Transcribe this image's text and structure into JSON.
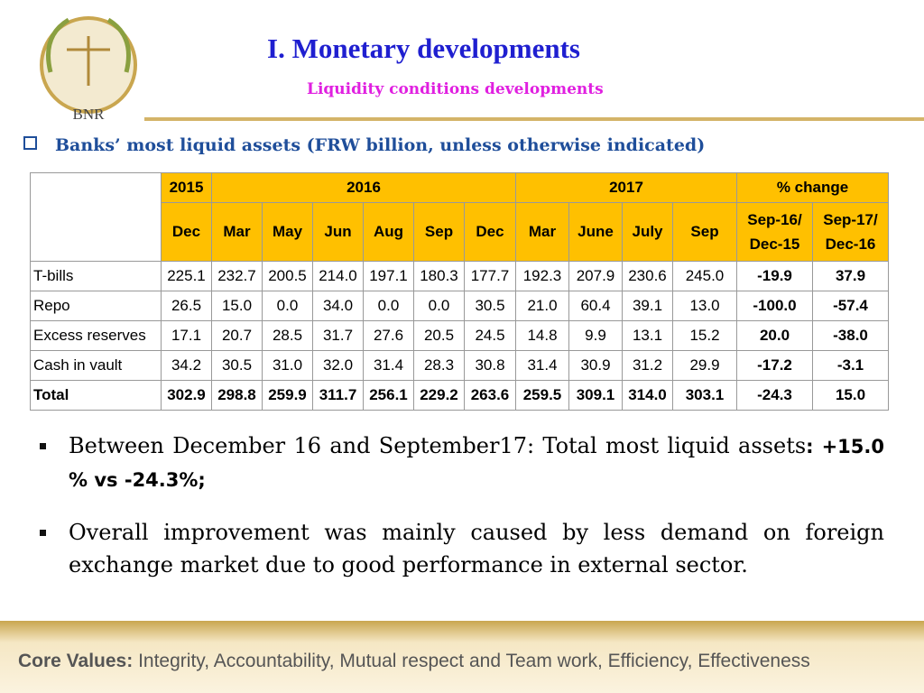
{
  "header": {
    "logo_text": "BNR",
    "title": "I. Monetary developments",
    "subtitle": "Liquidity conditions developments"
  },
  "section_heading": "Banks’ most liquid assets (FRW billion, unless otherwise indicated)",
  "table": {
    "years": [
      "2015",
      "2016",
      "2017",
      "% change"
    ],
    "periods": [
      "Dec",
      "Mar",
      "May",
      "Jun",
      "Aug",
      "Sep",
      "Dec",
      "Mar",
      "June",
      "July",
      "Sep",
      "Sep-16/\nDec-15",
      "Sep-17/\nDec-16"
    ],
    "rows": [
      [
        "T-bills",
        "225.1",
        "232.7",
        "200.5",
        "214.0",
        "197.1",
        "180.3",
        "177.7",
        "192.3",
        "207.9",
        "230.6",
        "245.0",
        "-19.9",
        "37.9"
      ],
      [
        "Repo",
        "26.5",
        "15.0",
        "0.0",
        "34.0",
        "0.0",
        "0.0",
        "30.5",
        "21.0",
        "60.4",
        "39.1",
        "13.0",
        "-100.0",
        "-57.4"
      ],
      [
        "Excess reserves",
        "17.1",
        "20.7",
        "28.5",
        "31.7",
        "27.6",
        "20.5",
        "24.5",
        "14.8",
        "9.9",
        "13.1",
        "15.2",
        "20.0",
        "-38.0"
      ],
      [
        "Cash in vault",
        "34.2",
        "30.5",
        "31.0",
        "32.0",
        "31.4",
        "28.3",
        "30.8",
        "31.4",
        "30.9",
        "31.2",
        "29.9",
        "-17.2",
        "-3.1"
      ],
      [
        "Total",
        "302.9",
        "298.8",
        "259.9",
        "311.7",
        "256.1",
        "229.2",
        "263.6",
        "259.5",
        "309.1",
        "314.0",
        "303.1",
        "-24.3",
        "15.0"
      ]
    ]
  },
  "bullets": [
    {
      "text": "Between December 16 and September17: Total most liquid assets",
      "emphasis": ": +15.0 % vs -24.3%;"
    },
    {
      "text": "Overall improvement was mainly caused by less demand on foreign exchange market due to good performance in external sector."
    }
  ],
  "footer": {
    "label": "Core Values:",
    "text": "Integrity, Accountability, Mutual respect and Team work, Efficiency, Effectiveness"
  }
}
